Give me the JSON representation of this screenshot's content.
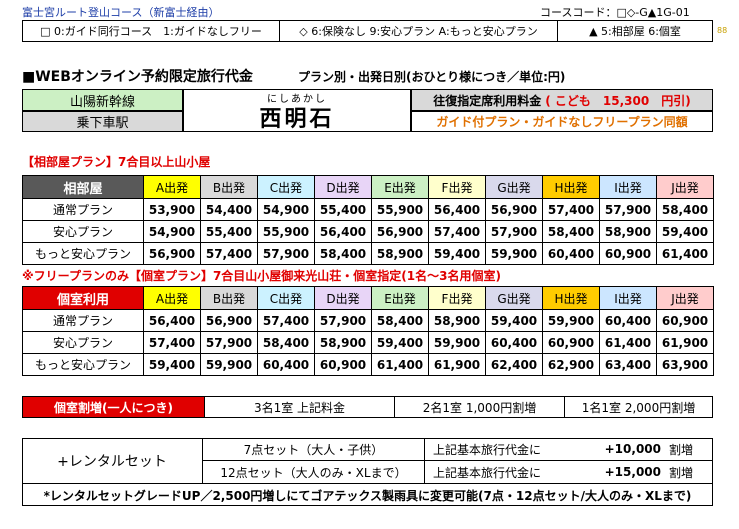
{
  "header": {
    "route_title": "富士宮ルート登山コース（新富士経由）",
    "course_code": "コースコード：□◇-G▲1G-01",
    "page_no": "88"
  },
  "legend": {
    "guide": "□ 0:ガイド同行コース　1:ガイドなしフリー",
    "insurance": "◇ 6:保険なし 9:安心プラン A:もっと安心プラン",
    "room": "▲ 5:相部屋 6:個室"
  },
  "fare": {
    "heading": "■WEBオンライン予約限定旅行代金",
    "subheading": "プラン別・出発日別(おひとり様につき／単位:円)",
    "shinkansen_label": "山陽新幹線",
    "station_label": "乗下車駅",
    "station_ruby": "にしあかし",
    "station_name": "西明石",
    "round_trip_label": "往復指定席利用料金",
    "child_fare": "( こども　15,300　円引)",
    "guide_plans_note": "ガイド付プラン・ガイドなしフリープラン同額"
  },
  "departures": [
    {
      "label": "A出発",
      "color": "#ffff00"
    },
    {
      "label": "B出発",
      "color": "#d9d9d9"
    },
    {
      "label": "C出発",
      "color": "#ccf2ff"
    },
    {
      "label": "D出発",
      "color": "#e8d5f7"
    },
    {
      "label": "E出発",
      "color": "#ccf0c4"
    },
    {
      "label": "F出発",
      "color": "#ffffcc"
    },
    {
      "label": "G出発",
      "color": "#d9d9ec"
    },
    {
      "label": "H出発",
      "color": "#ffcc00"
    },
    {
      "label": "I出発",
      "color": "#cce6ff"
    },
    {
      "label": "J出発",
      "color": "#ffcccc"
    }
  ],
  "room_share": {
    "section_title": "【相部屋プラン】7合目以上山小屋",
    "header": "相部屋",
    "rows": [
      {
        "plan": "通常プラン",
        "prices": [
          "53,900",
          "54,400",
          "54,900",
          "55,400",
          "55,900",
          "56,400",
          "56,900",
          "57,400",
          "57,900",
          "58,400"
        ]
      },
      {
        "plan": "安心プラン",
        "prices": [
          "54,900",
          "55,400",
          "55,900",
          "56,400",
          "56,900",
          "57,400",
          "57,900",
          "58,400",
          "58,900",
          "59,400"
        ]
      },
      {
        "plan": "もっと安心プラン",
        "prices": [
          "56,900",
          "57,400",
          "57,900",
          "58,400",
          "58,900",
          "59,400",
          "59,900",
          "60,400",
          "60,900",
          "61,400"
        ]
      }
    ]
  },
  "private_room": {
    "section_title": "※フリープランのみ【個室プラン】7合目山小屋御来光山荘・個室指定(1名～3名用個室)",
    "header": "個室利用",
    "rows": [
      {
        "plan": "通常プラン",
        "prices": [
          "56,400",
          "56,900",
          "57,400",
          "57,900",
          "58,400",
          "58,900",
          "59,400",
          "59,900",
          "60,400",
          "60,900"
        ]
      },
      {
        "plan": "安心プラン",
        "prices": [
          "57,400",
          "57,900",
          "58,400",
          "58,900",
          "59,400",
          "59,900",
          "60,400",
          "60,900",
          "61,400",
          "61,900"
        ]
      },
      {
        "plan": "もっと安心プラン",
        "prices": [
          "59,400",
          "59,900",
          "60,400",
          "60,900",
          "61,400",
          "61,900",
          "62,400",
          "62,900",
          "63,400",
          "63,900"
        ]
      }
    ]
  },
  "surcharge": {
    "label": "個室割増(一人につき)",
    "three": "3名1室 上記料金",
    "two": "2名1室 1,000円割増",
    "one": "1名1室 2,000円割増"
  },
  "rental": {
    "label": "+レンタルセット",
    "set7": "7点セット（大人・子供）",
    "set12": "12点セット（大人のみ・XLまで）",
    "price_label": "上記基本旅行代金に",
    "price7": "+10,000",
    "price12": "+15,000",
    "unit": "割増",
    "note": "*レンタルセットグレードUP／2,500円増しにてゴアテックス製雨具に変更可能(7点・12点セット/大人のみ・XLまで)"
  }
}
